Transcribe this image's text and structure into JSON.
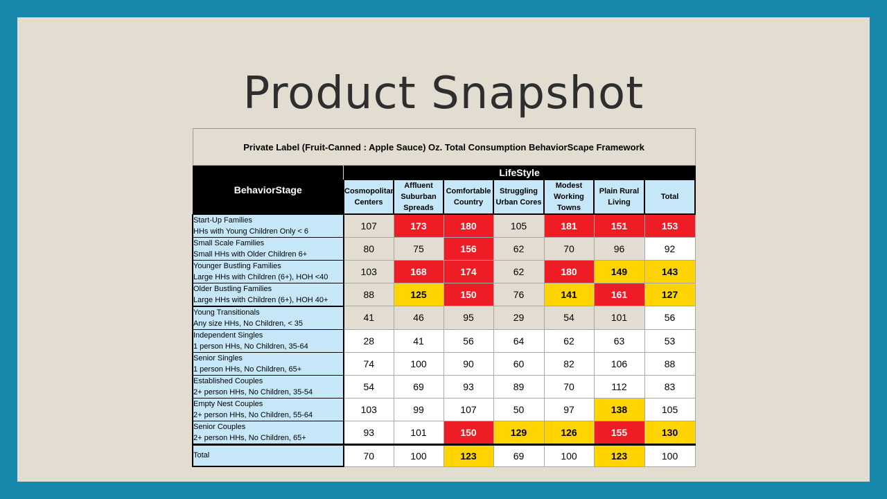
{
  "slide_title": "Product Snapshot",
  "table": {
    "caption": "Private Label (Fruit-Canned : Apple Sauce) Oz.  Total Consumption BehaviorScape Framework",
    "row_header": "BehaviorStage",
    "column_group_header": "LifeStyle",
    "columns": [
      {
        "lines": [
          "Cosmopolitan",
          "Centers"
        ]
      },
      {
        "lines": [
          "Affluent",
          "Suburban",
          "Spreads"
        ]
      },
      {
        "lines": [
          "Comfortable",
          "Country"
        ]
      },
      {
        "lines": [
          "Struggling",
          "Urban Cores"
        ]
      },
      {
        "lines": [
          "Modest",
          "Working",
          "Towns"
        ]
      },
      {
        "lines": [
          "Plain Rural",
          "Living"
        ]
      },
      {
        "lines": [
          "Total"
        ]
      }
    ],
    "rows": [
      {
        "label1": "Start-Up Families",
        "label2": "HHs with Young Children Only < 6",
        "cells": [
          {
            "v": "107",
            "c": "neutral"
          },
          {
            "v": "173",
            "c": "red"
          },
          {
            "v": "180",
            "c": "red"
          },
          {
            "v": "105",
            "c": "neutral"
          },
          {
            "v": "181",
            "c": "red"
          },
          {
            "v": "151",
            "c": "red"
          },
          {
            "v": "153",
            "c": "red"
          }
        ]
      },
      {
        "label1": "Small Scale Families",
        "label2": "Small HHs with Older Children 6+",
        "cells": [
          {
            "v": "80",
            "c": "neutral"
          },
          {
            "v": "75",
            "c": "neutral"
          },
          {
            "v": "156",
            "c": "red"
          },
          {
            "v": "62",
            "c": "neutral"
          },
          {
            "v": "70",
            "c": "neutral"
          },
          {
            "v": "96",
            "c": "neutral"
          },
          {
            "v": "92",
            "c": "white"
          }
        ]
      },
      {
        "label1": "Younger Bustling Families",
        "label2": "Large HHs with Children (6+), HOH <40",
        "cells": [
          {
            "v": "103",
            "c": "neutral"
          },
          {
            "v": "168",
            "c": "red"
          },
          {
            "v": "174",
            "c": "red"
          },
          {
            "v": "62",
            "c": "neutral"
          },
          {
            "v": "180",
            "c": "red"
          },
          {
            "v": "149",
            "c": "yellow"
          },
          {
            "v": "143",
            "c": "yellow"
          }
        ]
      },
      {
        "label1": "Older Bustling Families",
        "label2": "Large HHs with Children (6+), HOH 40+",
        "cells": [
          {
            "v": "88",
            "c": "neutral"
          },
          {
            "v": "125",
            "c": "yellow"
          },
          {
            "v": "150",
            "c": "red"
          },
          {
            "v": "76",
            "c": "neutral"
          },
          {
            "v": "141",
            "c": "yellow"
          },
          {
            "v": "161",
            "c": "red"
          },
          {
            "v": "127",
            "c": "yellow"
          }
        ]
      },
      {
        "label1": "Young Transitionals",
        "label2": "Any size HHs, No Children, < 35",
        "group_start": true,
        "cells": [
          {
            "v": "41",
            "c": "neutral"
          },
          {
            "v": "46",
            "c": "neutral"
          },
          {
            "v": "95",
            "c": "neutral"
          },
          {
            "v": "29",
            "c": "neutral"
          },
          {
            "v": "54",
            "c": "neutral"
          },
          {
            "v": "101",
            "c": "neutral"
          },
          {
            "v": "56",
            "c": "white"
          }
        ]
      },
      {
        "label1": "Independent Singles",
        "label2": "1 person HHs, No Children, 35-64",
        "cells": [
          {
            "v": "28",
            "c": "white"
          },
          {
            "v": "41",
            "c": "white"
          },
          {
            "v": "56",
            "c": "white"
          },
          {
            "v": "64",
            "c": "white"
          },
          {
            "v": "62",
            "c": "white"
          },
          {
            "v": "63",
            "c": "white"
          },
          {
            "v": "53",
            "c": "white"
          }
        ]
      },
      {
        "label1": "Senior Singles",
        "label2": "1 person HHs, No Children, 65+",
        "cells": [
          {
            "v": "74",
            "c": "white"
          },
          {
            "v": "100",
            "c": "white"
          },
          {
            "v": "90",
            "c": "white"
          },
          {
            "v": "60",
            "c": "white"
          },
          {
            "v": "82",
            "c": "white"
          },
          {
            "v": "106",
            "c": "white"
          },
          {
            "v": "88",
            "c": "white"
          }
        ]
      },
      {
        "label1": "Established Couples",
        "label2": "2+ person HHs, No Children, 35-54",
        "cells": [
          {
            "v": "54",
            "c": "white"
          },
          {
            "v": "69",
            "c": "white"
          },
          {
            "v": "93",
            "c": "white"
          },
          {
            "v": "89",
            "c": "white"
          },
          {
            "v": "70",
            "c": "white"
          },
          {
            "v": "112",
            "c": "white"
          },
          {
            "v": "83",
            "c": "white"
          }
        ]
      },
      {
        "label1": "Empty Nest Couples",
        "label2": "2+ person HHs, No Children, 55-64",
        "cells": [
          {
            "v": "103",
            "c": "white"
          },
          {
            "v": "99",
            "c": "white"
          },
          {
            "v": "107",
            "c": "white"
          },
          {
            "v": "50",
            "c": "white"
          },
          {
            "v": "97",
            "c": "white"
          },
          {
            "v": "138",
            "c": "yellow"
          },
          {
            "v": "105",
            "c": "white"
          }
        ]
      },
      {
        "label1": "Senior Couples",
        "label2": "2+ person HHs, No Children, 65+",
        "cells": [
          {
            "v": "93",
            "c": "white"
          },
          {
            "v": "101",
            "c": "white"
          },
          {
            "v": "150",
            "c": "red"
          },
          {
            "v": "129",
            "c": "yellow"
          },
          {
            "v": "126",
            "c": "yellow"
          },
          {
            "v": "155",
            "c": "red"
          },
          {
            "v": "130",
            "c": "yellow"
          }
        ]
      }
    ],
    "total_row": {
      "label": "Total",
      "cells": [
        {
          "v": "70",
          "c": "white"
        },
        {
          "v": "100",
          "c": "white"
        },
        {
          "v": "123",
          "c": "yellow"
        },
        {
          "v": "69",
          "c": "white"
        },
        {
          "v": "100",
          "c": "white"
        },
        {
          "v": "123",
          "c": "yellow"
        },
        {
          "v": "100",
          "c": "white"
        }
      ]
    }
  },
  "colors": {
    "frame": "#1787ab",
    "slide_background": "#e3ddd1",
    "header_blue": "#c5e7f7",
    "highlight_red": "#ee1c25",
    "highlight_yellow": "#ffd400"
  }
}
